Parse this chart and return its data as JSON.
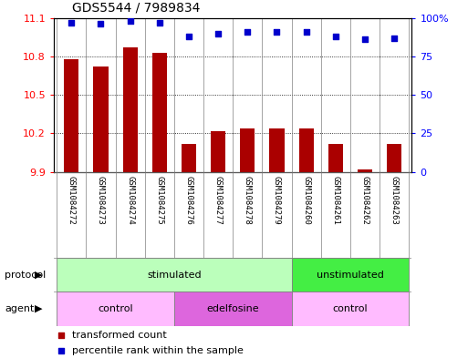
{
  "title": "GDS5544 / 7989834",
  "samples": [
    "GSM1084272",
    "GSM1084273",
    "GSM1084274",
    "GSM1084275",
    "GSM1084276",
    "GSM1084277",
    "GSM1084278",
    "GSM1084279",
    "GSM1084260",
    "GSM1084261",
    "GSM1084262",
    "GSM1084263"
  ],
  "transformed_count": [
    10.78,
    10.72,
    10.87,
    10.83,
    10.12,
    10.22,
    10.24,
    10.24,
    10.24,
    10.12,
    9.92,
    10.12
  ],
  "percentile_rank": [
    97,
    96,
    98,
    97,
    88,
    90,
    91,
    91,
    91,
    88,
    86,
    87
  ],
  "ylim_left": [
    9.9,
    11.1
  ],
  "ylim_right": [
    0,
    100
  ],
  "yticks_left": [
    9.9,
    10.2,
    10.5,
    10.8,
    11.1
  ],
  "ytick_labels_left": [
    "9.9",
    "10.2",
    "10.5",
    "10.8",
    "11.1"
  ],
  "yticks_right": [
    0,
    25,
    50,
    75,
    100
  ],
  "ytick_labels_right": [
    "0",
    "25",
    "50",
    "75",
    "100%"
  ],
  "bar_color": "#aa0000",
  "dot_color": "#0000cc",
  "bar_width": 0.5,
  "protocol_groups": [
    {
      "label": "stimulated",
      "start": 0,
      "end": 7,
      "color": "#bbffbb"
    },
    {
      "label": "unstimulated",
      "start": 8,
      "end": 11,
      "color": "#44ee44"
    }
  ],
  "agent_groups": [
    {
      "label": "control",
      "start": 0,
      "end": 3,
      "color": "#ffbbff"
    },
    {
      "label": "edelfosine",
      "start": 4,
      "end": 7,
      "color": "#dd66dd"
    },
    {
      "label": "control",
      "start": 8,
      "end": 11,
      "color": "#ffbbff"
    }
  ],
  "legend_items": [
    {
      "label": "transformed count",
      "color": "#aa0000",
      "marker": "s"
    },
    {
      "label": "percentile rank within the sample",
      "color": "#0000cc",
      "marker": "s"
    }
  ],
  "sample_bg_color": "#cccccc",
  "plot_bg_color": "#ffffff",
  "grid_color": "#000000",
  "label_protocol": "protocol",
  "label_agent": "agent"
}
